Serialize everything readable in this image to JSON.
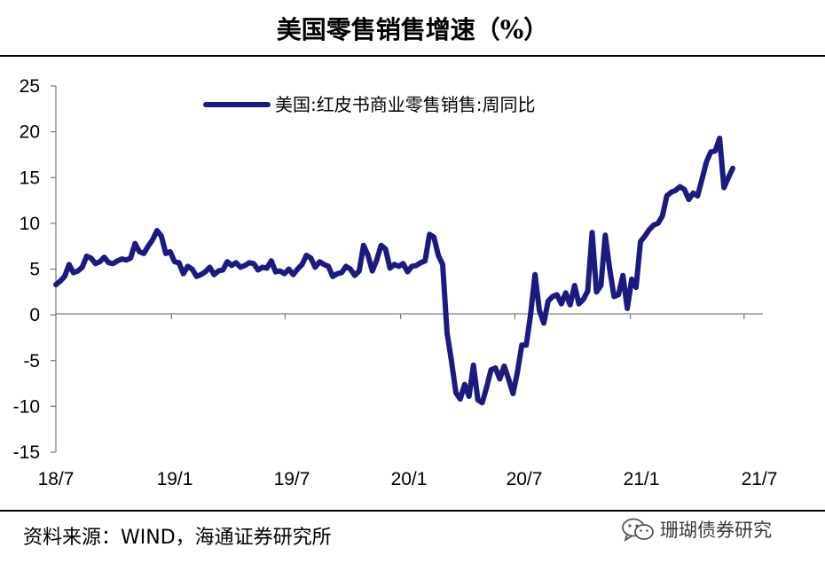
{
  "header": {
    "title": "美国零售销售增速（%）"
  },
  "footer": {
    "source": "资料来源：WIND，海通证券研究所"
  },
  "watermark": {
    "text": "珊瑚债券研究",
    "icon": "wechat-logo-icon"
  },
  "chart_data": {
    "type": "line",
    "title": "美国零售销售增速（%）",
    "xlabel": "",
    "ylabel": "",
    "ylim": [
      -15,
      25
    ],
    "yticks": [
      25,
      20,
      15,
      10,
      5,
      0,
      -5,
      -10,
      -15
    ],
    "xlim": [
      "2018-07-01",
      "2021-07-31"
    ],
    "xticks": [
      "18/7",
      "19/1",
      "19/7",
      "20/1",
      "20/7",
      "21/1",
      "21/7"
    ],
    "grid": false,
    "legend": {
      "position": "top-center"
    },
    "series_color": "#1a1a80",
    "series": [
      {
        "name": "美国:红皮书商业零售销售:周同比",
        "points": [
          [
            "2018-07-01",
            3.3
          ],
          [
            "2018-07-08",
            3.7
          ],
          [
            "2018-07-15",
            4.2
          ],
          [
            "2018-07-22",
            5.5
          ],
          [
            "2018-07-29",
            4.6
          ],
          [
            "2018-08-05",
            4.8
          ],
          [
            "2018-08-12",
            5.2
          ],
          [
            "2018-08-19",
            6.4
          ],
          [
            "2018-08-26",
            6.2
          ],
          [
            "2018-09-02",
            5.6
          ],
          [
            "2018-09-09",
            5.8
          ],
          [
            "2018-09-16",
            6.3
          ],
          [
            "2018-09-23",
            5.7
          ],
          [
            "2018-09-30",
            5.6
          ],
          [
            "2018-10-07",
            5.9
          ],
          [
            "2018-10-14",
            6.1
          ],
          [
            "2018-10-21",
            6.0
          ],
          [
            "2018-10-28",
            6.2
          ],
          [
            "2018-11-04",
            7.8
          ],
          [
            "2018-11-11",
            6.9
          ],
          [
            "2018-11-18",
            6.7
          ],
          [
            "2018-11-25",
            7.5
          ],
          [
            "2018-12-02",
            8.2
          ],
          [
            "2018-12-09",
            9.2
          ],
          [
            "2018-12-16",
            8.6
          ],
          [
            "2018-12-23",
            6.7
          ],
          [
            "2018-12-30",
            6.9
          ],
          [
            "2019-01-06",
            5.8
          ],
          [
            "2019-01-13",
            5.7
          ],
          [
            "2019-01-20",
            4.5
          ],
          [
            "2019-01-27",
            5.3
          ],
          [
            "2019-02-03",
            5.0
          ],
          [
            "2019-02-10",
            4.2
          ],
          [
            "2019-02-17",
            4.4
          ],
          [
            "2019-02-24",
            4.7
          ],
          [
            "2019-03-03",
            5.2
          ],
          [
            "2019-03-10",
            4.4
          ],
          [
            "2019-03-17",
            4.8
          ],
          [
            "2019-03-24",
            4.9
          ],
          [
            "2019-03-31",
            5.8
          ],
          [
            "2019-04-07",
            5.4
          ],
          [
            "2019-04-14",
            5.7
          ],
          [
            "2019-04-21",
            5.2
          ],
          [
            "2019-04-28",
            5.4
          ],
          [
            "2019-05-05",
            5.7
          ],
          [
            "2019-05-12",
            5.6
          ],
          [
            "2019-05-19",
            4.9
          ],
          [
            "2019-05-26",
            5.2
          ],
          [
            "2019-06-02",
            5.1
          ],
          [
            "2019-06-09",
            5.9
          ],
          [
            "2019-06-16",
            4.7
          ],
          [
            "2019-06-23",
            4.8
          ],
          [
            "2019-06-30",
            4.5
          ],
          [
            "2019-07-07",
            5.0
          ],
          [
            "2019-07-14",
            4.4
          ],
          [
            "2019-07-21",
            5.0
          ],
          [
            "2019-07-28",
            5.5
          ],
          [
            "2019-08-04",
            6.5
          ],
          [
            "2019-08-11",
            6.2
          ],
          [
            "2019-08-18",
            5.2
          ],
          [
            "2019-08-25",
            5.8
          ],
          [
            "2019-09-01",
            5.5
          ],
          [
            "2019-09-08",
            5.3
          ],
          [
            "2019-09-15",
            4.2
          ],
          [
            "2019-09-22",
            4.5
          ],
          [
            "2019-09-29",
            4.6
          ],
          [
            "2019-10-06",
            5.3
          ],
          [
            "2019-10-13",
            5.0
          ],
          [
            "2019-10-20",
            4.3
          ],
          [
            "2019-10-27",
            4.8
          ],
          [
            "2019-11-03",
            7.6
          ],
          [
            "2019-11-10",
            6.5
          ],
          [
            "2019-11-17",
            4.8
          ],
          [
            "2019-11-24",
            6.0
          ],
          [
            "2019-12-01",
            7.6
          ],
          [
            "2019-12-08",
            7.2
          ],
          [
            "2019-12-15",
            5.1
          ],
          [
            "2019-12-22",
            5.5
          ],
          [
            "2019-12-29",
            5.3
          ],
          [
            "2020-01-05",
            5.6
          ],
          [
            "2020-01-12",
            4.7
          ],
          [
            "2020-01-19",
            5.3
          ],
          [
            "2020-01-26",
            5.4
          ],
          [
            "2020-02-02",
            5.7
          ],
          [
            "2020-02-09",
            5.9
          ],
          [
            "2020-02-16",
            8.8
          ],
          [
            "2020-02-23",
            8.5
          ],
          [
            "2020-03-01",
            6.5
          ],
          [
            "2020-03-08",
            5.5
          ],
          [
            "2020-03-15",
            -2.0
          ],
          [
            "2020-03-22",
            -5.0
          ],
          [
            "2020-03-29",
            -8.5
          ],
          [
            "2020-04-05",
            -9.2
          ],
          [
            "2020-04-12",
            -7.6
          ],
          [
            "2020-04-19",
            -8.9
          ],
          [
            "2020-04-26",
            -5.5
          ],
          [
            "2020-05-03",
            -9.3
          ],
          [
            "2020-05-10",
            -9.6
          ],
          [
            "2020-05-17",
            -7.9
          ],
          [
            "2020-05-24",
            -6.0
          ],
          [
            "2020-05-31",
            -5.8
          ],
          [
            "2020-06-07",
            -7.0
          ],
          [
            "2020-06-14",
            -5.6
          ],
          [
            "2020-06-21",
            -7.0
          ],
          [
            "2020-06-28",
            -8.6
          ],
          [
            "2020-07-05",
            -6.3
          ],
          [
            "2020-07-12",
            -3.3
          ],
          [
            "2020-07-19",
            -3.3
          ],
          [
            "2020-07-26",
            0.0
          ],
          [
            "2020-08-02",
            4.4
          ],
          [
            "2020-08-09",
            0.5
          ],
          [
            "2020-08-16",
            -0.9
          ],
          [
            "2020-08-23",
            1.5
          ],
          [
            "2020-08-30",
            2.0
          ],
          [
            "2020-09-06",
            2.2
          ],
          [
            "2020-09-13",
            1.2
          ],
          [
            "2020-09-20",
            2.4
          ],
          [
            "2020-09-27",
            1.1
          ],
          [
            "2020-10-04",
            3.2
          ],
          [
            "2020-10-11",
            1.2
          ],
          [
            "2020-10-18",
            1.7
          ],
          [
            "2020-10-25",
            2.6
          ],
          [
            "2020-11-01",
            9.0
          ],
          [
            "2020-11-08",
            2.5
          ],
          [
            "2020-11-15",
            3.2
          ],
          [
            "2020-11-22",
            8.7
          ],
          [
            "2020-11-29",
            5.0
          ],
          [
            "2020-12-06",
            2.0
          ],
          [
            "2020-12-13",
            2.2
          ],
          [
            "2020-12-20",
            4.3
          ],
          [
            "2020-12-27",
            0.7
          ],
          [
            "2021-01-03",
            3.9
          ],
          [
            "2021-01-10",
            3.0
          ],
          [
            "2021-01-17",
            8.0
          ],
          [
            "2021-01-24",
            8.6
          ],
          [
            "2021-01-31",
            9.3
          ],
          [
            "2021-02-07",
            9.8
          ],
          [
            "2021-02-14",
            10.0
          ],
          [
            "2021-02-21",
            10.8
          ],
          [
            "2021-02-28",
            13.0
          ],
          [
            "2021-03-07",
            13.4
          ],
          [
            "2021-03-14",
            13.6
          ],
          [
            "2021-03-21",
            14.0
          ],
          [
            "2021-03-28",
            13.7
          ],
          [
            "2021-04-04",
            12.6
          ],
          [
            "2021-04-11",
            13.3
          ],
          [
            "2021-04-18",
            13.0
          ],
          [
            "2021-04-25",
            14.8
          ],
          [
            "2021-05-02",
            16.7
          ],
          [
            "2021-05-09",
            17.8
          ],
          [
            "2021-05-16",
            17.9
          ],
          [
            "2021-05-23",
            19.3
          ],
          [
            "2021-05-30",
            13.9
          ],
          [
            "2021-06-06",
            15.0
          ],
          [
            "2021-06-13",
            16.0
          ]
        ]
      }
    ]
  }
}
